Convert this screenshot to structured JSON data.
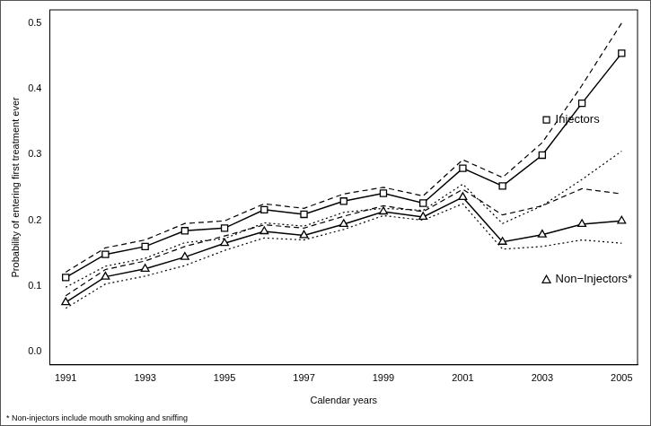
{
  "chart_data": {
    "type": "line",
    "x_label": "Calendar years",
    "y_label": "Probability of entering first treatment ever",
    "footnote": "* Non-injectors include mouth smoking and sniffing",
    "x": [
      1991,
      1992,
      1993,
      1994,
      1995,
      1996,
      1997,
      1998,
      1999,
      2000,
      2001,
      2002,
      2003,
      2004,
      2005
    ],
    "series": [
      {
        "name": "Injectors",
        "color": "#000000",
        "marker": "square",
        "line_style": "solid",
        "values": [
          0.113,
          0.148,
          0.16,
          0.184,
          0.188,
          0.216,
          0.209,
          0.229,
          0.241,
          0.226,
          0.279,
          0.252,
          0.299,
          0.378,
          0.454
        ],
        "upper": [
          0.121,
          0.158,
          0.17,
          0.195,
          0.199,
          0.225,
          0.218,
          0.24,
          0.25,
          0.237,
          0.292,
          0.265,
          0.318,
          0.405,
          0.5
        ],
        "lower": [
          0.098,
          0.13,
          0.142,
          0.166,
          0.172,
          0.196,
          0.191,
          0.212,
          0.218,
          0.215,
          0.255,
          0.195,
          0.222,
          0.262,
          0.305
        ]
      },
      {
        "name": "Non−Injectors*",
        "color": "#000000",
        "marker": "triangle",
        "line_style": "solid",
        "values": [
          0.075,
          0.114,
          0.126,
          0.144,
          0.165,
          0.183,
          0.177,
          0.194,
          0.213,
          0.205,
          0.235,
          0.167,
          0.178,
          0.194,
          0.199
        ],
        "upper": [
          0.085,
          0.125,
          0.138,
          0.16,
          0.176,
          0.193,
          0.188,
          0.206,
          0.222,
          0.213,
          0.247,
          0.208,
          0.222,
          0.248,
          0.24
        ],
        "lower": [
          0.066,
          0.103,
          0.115,
          0.131,
          0.154,
          0.173,
          0.17,
          0.186,
          0.207,
          0.2,
          0.225,
          0.156,
          0.16,
          0.17,
          0.165
        ]
      }
    ],
    "xlim": [
      1990.6,
      2005.4
    ],
    "xticks": [
      1991,
      1993,
      1995,
      1997,
      1999,
      2001,
      2003,
      2005
    ],
    "ylim": [
      -0.02,
      0.52
    ],
    "yticks": [
      {
        "value": 0,
        "label": "0.0"
      },
      0.1,
      0.2,
      0.3,
      0.4,
      0.5
    ],
    "grid": false
  }
}
